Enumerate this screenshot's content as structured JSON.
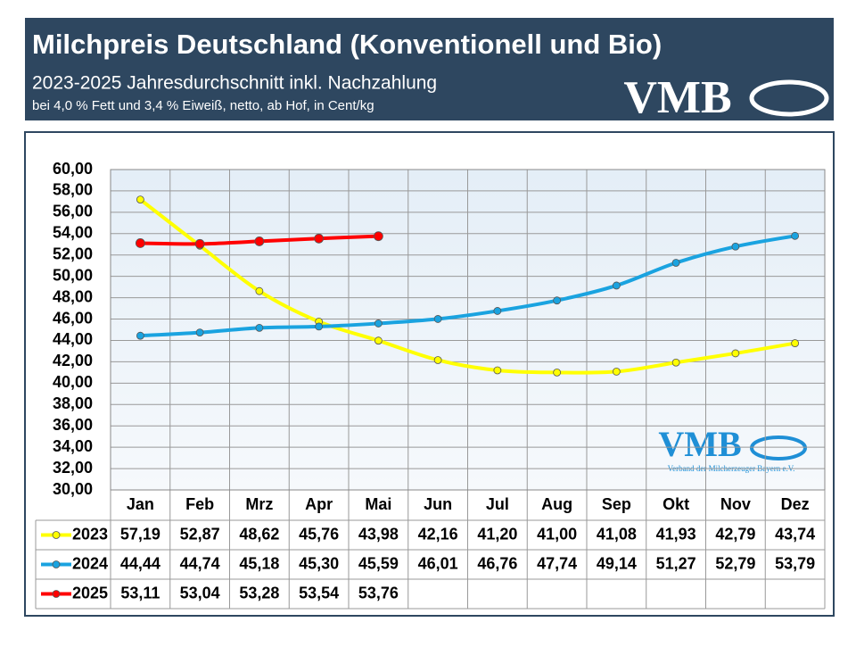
{
  "chart_data": {
    "type": "line",
    "title": "Milchpreis Deutschland (Konventionell und Bio)",
    "subtitle": "2023-2025 Jahresdurchschnitt inkl. Nachzahlung",
    "note": "bei 4,0 % Fett und 3,4 % Eiweiß, netto, ab Hof, in Cent/kg",
    "logo": "VMB",
    "watermark": "VMB",
    "watermark_caption": "Verband der Milcherzeuger Bayern e.V.",
    "categories": [
      "Jan",
      "Feb",
      "Mrz",
      "Apr",
      "Mai",
      "Jun",
      "Jul",
      "Aug",
      "Sep",
      "Okt",
      "Nov",
      "Dez"
    ],
    "series": [
      {
        "name": "2023",
        "color": "#ffff00",
        "values": [
          57.19,
          52.87,
          48.62,
          45.76,
          43.98,
          42.16,
          41.2,
          41.0,
          41.08,
          41.93,
          42.79,
          43.74
        ],
        "value_labels": [
          "57,19",
          "52,87",
          "48,62",
          "45,76",
          "43,98",
          "42,16",
          "41,20",
          "41,00",
          "41,08",
          "41,93",
          "42,79",
          "43,74"
        ]
      },
      {
        "name": "2024",
        "color": "#1aa3e0",
        "values": [
          44.44,
          44.74,
          45.18,
          45.3,
          45.59,
          46.01,
          46.76,
          47.74,
          49.14,
          51.27,
          52.79,
          53.79
        ],
        "value_labels": [
          "44,44",
          "44,74",
          "45,18",
          "45,30",
          "45,59",
          "46,01",
          "46,76",
          "47,74",
          "49,14",
          "51,27",
          "52,79",
          "53,79"
        ]
      },
      {
        "name": "2025",
        "color": "#ff0000",
        "values": [
          53.11,
          53.04,
          53.28,
          53.54,
          53.76,
          null,
          null,
          null,
          null,
          null,
          null,
          null
        ],
        "value_labels": [
          "53,11",
          "53,04",
          "53,28",
          "53,54",
          "53,76",
          null,
          null,
          null,
          null,
          null,
          null,
          null
        ]
      }
    ],
    "ylim": [
      30,
      60
    ],
    "yticks": [
      {
        "value": 30,
        "label": "30,00"
      },
      {
        "value": 32,
        "label": "32,00"
      },
      {
        "value": 34,
        "label": "34,00"
      },
      {
        "value": 36,
        "label": "36,00"
      },
      {
        "value": 38,
        "label": "38,00"
      },
      {
        "value": 40,
        "label": "40,00"
      },
      {
        "value": 42,
        "label": "42,00"
      },
      {
        "value": 44,
        "label": "44,00"
      },
      {
        "value": 46,
        "label": "46,00"
      },
      {
        "value": 48,
        "label": "48,00"
      },
      {
        "value": 50,
        "label": "50,00"
      },
      {
        "value": 52,
        "label": "52,00"
      },
      {
        "value": 54,
        "label": "54,00"
      },
      {
        "value": 56,
        "label": "56,00"
      },
      {
        "value": 58,
        "label": "58,00"
      },
      {
        "value": 60,
        "label": "60,00"
      }
    ],
    "grid": true,
    "smooth": true
  }
}
